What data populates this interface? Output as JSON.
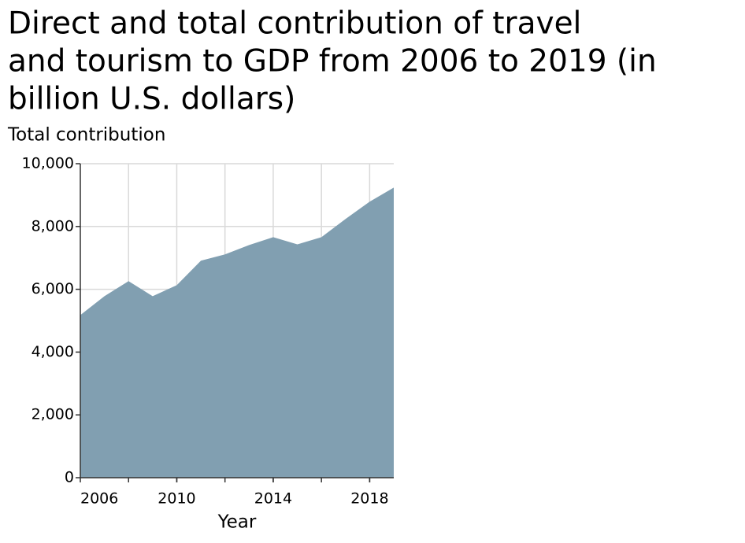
{
  "chart_data": {
    "type": "area",
    "title": [
      "Direct and total contribution of travel",
      "and tourism to GDP from 2006 to 2019 (in",
      "billion U.S. dollars)"
    ],
    "ylabel": "Total contribution",
    "xlabel": "Year",
    "x": [
      2006,
      2007,
      2008,
      2009,
      2010,
      2011,
      2012,
      2013,
      2014,
      2015,
      2016,
      2017,
      2018,
      2019
    ],
    "values": [
      5180,
      5780,
      6260,
      5780,
      6130,
      6910,
      7110,
      7410,
      7660,
      7430,
      7660,
      8240,
      8790,
      9240
    ],
    "color": "#819fb1",
    "xlim": [
      2006,
      2019
    ],
    "xticks": [
      2006,
      2010,
      2014,
      2018
    ],
    "xgrid": [
      2008,
      2010,
      2012,
      2014,
      2016,
      2018
    ],
    "ylim": [
      0,
      10000
    ],
    "yticks": [
      0,
      {
        "value": 2000,
        "label": "2,000"
      },
      {
        "value": 4000,
        "label": "4,000"
      },
      {
        "value": 6000,
        "label": "6,000"
      },
      {
        "value": 8000,
        "label": "8,000"
      },
      {
        "value": 10000,
        "label": "10,000"
      }
    ],
    "grid": true
  }
}
